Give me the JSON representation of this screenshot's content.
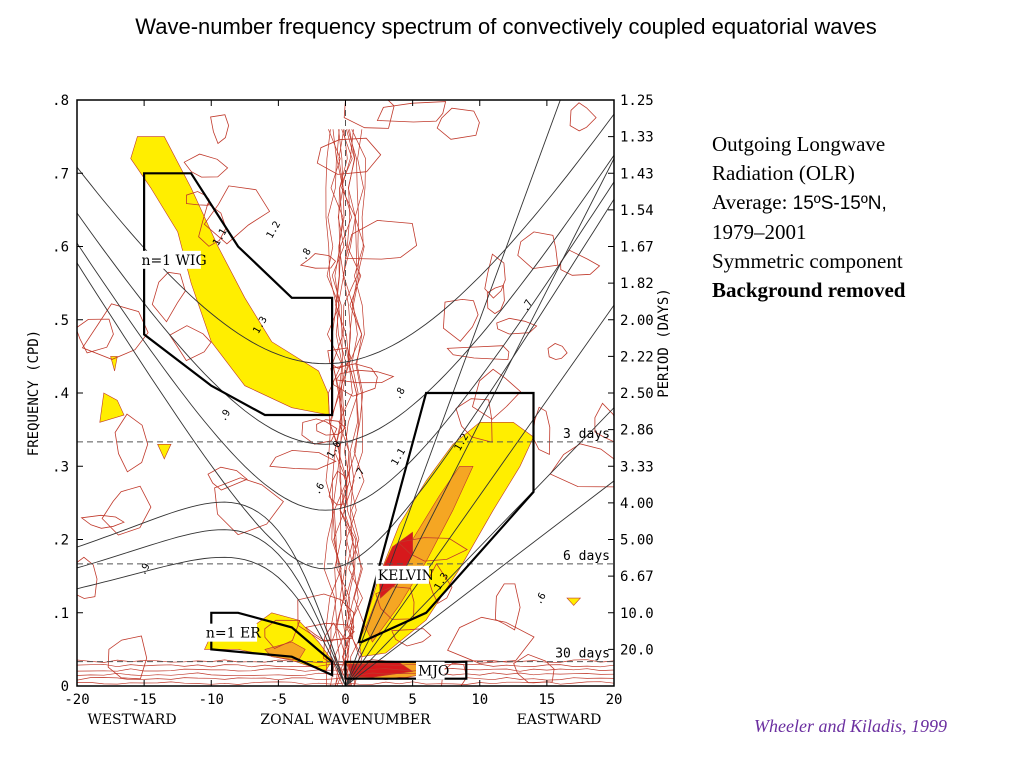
{
  "title": "Wave-number frequency spectrum of convectively coupled equatorial waves",
  "description": {
    "line1": "Outgoing Longwave",
    "line2": "Radiation (OLR)",
    "line3_prefix": "Average: ",
    "line3_range": "15ºS-15ºN,",
    "line4": "1979–2001",
    "line5": "Symmetric component",
    "line6": "Background removed"
  },
  "citation": "Wheeler and Kiladis, 1999",
  "colors": {
    "contour": "#c0392b",
    "fill_yellow": "#ffee00",
    "fill_orange": "#f5a623",
    "fill_red": "#d7191c",
    "box": "#000000",
    "curve": "#333333",
    "dashed": "#555555"
  },
  "chart_data": {
    "type": "heatmap",
    "xlabel": "ZONAL WAVENUMBER",
    "xlabel_left": "WESTWARD",
    "xlabel_right": "EASTWARD",
    "ylabel": "FREQUENCY (CPD)",
    "ylabel_right": "PERIOD (DAYS)",
    "xlim": [
      -20,
      20
    ],
    "ylim": [
      0,
      0.8
    ],
    "x_ticks": [
      -20,
      -15,
      -10,
      -5,
      0,
      5,
      10,
      15,
      20
    ],
    "x_tick_labels": [
      "-20",
      "-15",
      "-10",
      "-5",
      "0",
      "5",
      "10",
      "15",
      "20"
    ],
    "y_ticks": [
      0,
      0.1,
      0.2,
      0.3,
      0.4,
      0.5,
      0.6,
      0.7,
      0.8
    ],
    "y_tick_labels": [
      "0",
      ".1",
      ".2",
      ".3",
      ".4",
      ".5",
      ".6",
      ".7",
      ".8"
    ],
    "period_ticks": [
      {
        "freq": 0.8,
        "label": "1.25"
      },
      {
        "freq": 0.75,
        "label": "1.33"
      },
      {
        "freq": 0.7,
        "label": "1.43"
      },
      {
        "freq": 0.65,
        "label": "1.54"
      },
      {
        "freq": 0.6,
        "label": "1.67"
      },
      {
        "freq": 0.55,
        "label": "1.82"
      },
      {
        "freq": 0.5,
        "label": "2.00"
      },
      {
        "freq": 0.45,
        "label": "2.22"
      },
      {
        "freq": 0.4,
        "label": "2.50"
      },
      {
        "freq": 0.35,
        "label": "2.86"
      },
      {
        "freq": 0.3,
        "label": "3.33"
      },
      {
        "freq": 0.25,
        "label": "4.00"
      },
      {
        "freq": 0.2,
        "label": "5.00"
      },
      {
        "freq": 0.15,
        "label": "6.67"
      },
      {
        "freq": 0.1,
        "label": "10.0"
      },
      {
        "freq": 0.05,
        "label": "20.0"
      }
    ],
    "reference_lines": [
      {
        "freq": 0.3333,
        "label": "3 days"
      },
      {
        "freq": 0.1667,
        "label": "6 days"
      },
      {
        "freq": 0.0333,
        "label": "30 days"
      }
    ],
    "regions": [
      {
        "name": "n=1 WIG",
        "polygon": [
          [
            -15,
            0.7
          ],
          [
            -11.5,
            0.7
          ],
          [
            -8,
            0.6
          ],
          [
            -4,
            0.53
          ],
          [
            -1,
            0.53
          ],
          [
            -1,
            0.37
          ],
          [
            -6,
            0.37
          ],
          [
            -10,
            0.41
          ],
          [
            -15,
            0.48
          ]
        ]
      },
      {
        "name": "KELVIN",
        "polygon": [
          [
            1,
            0.06
          ],
          [
            6,
            0.4
          ],
          [
            14,
            0.4
          ],
          [
            14,
            0.265
          ],
          [
            6,
            0.1
          ],
          [
            1.2,
            0.06
          ]
        ]
      },
      {
        "name": "n=1 ER",
        "polygon": [
          [
            -10,
            0.1
          ],
          [
            -8,
            0.1
          ],
          [
            -4,
            0.08
          ],
          [
            -1,
            0.033
          ],
          [
            -1,
            0.015
          ],
          [
            -4,
            0.04
          ],
          [
            -10,
            0.05
          ]
        ]
      },
      {
        "name": "MJO",
        "polygon": [
          [
            0,
            0.033
          ],
          [
            9,
            0.033
          ],
          [
            9,
            0.01
          ],
          [
            0,
            0.01
          ]
        ]
      }
    ],
    "contour_labels": [
      "1.1",
      "1.2",
      "1.3",
      ".9",
      ".8",
      ".7",
      ".6",
      "1.0"
    ]
  }
}
